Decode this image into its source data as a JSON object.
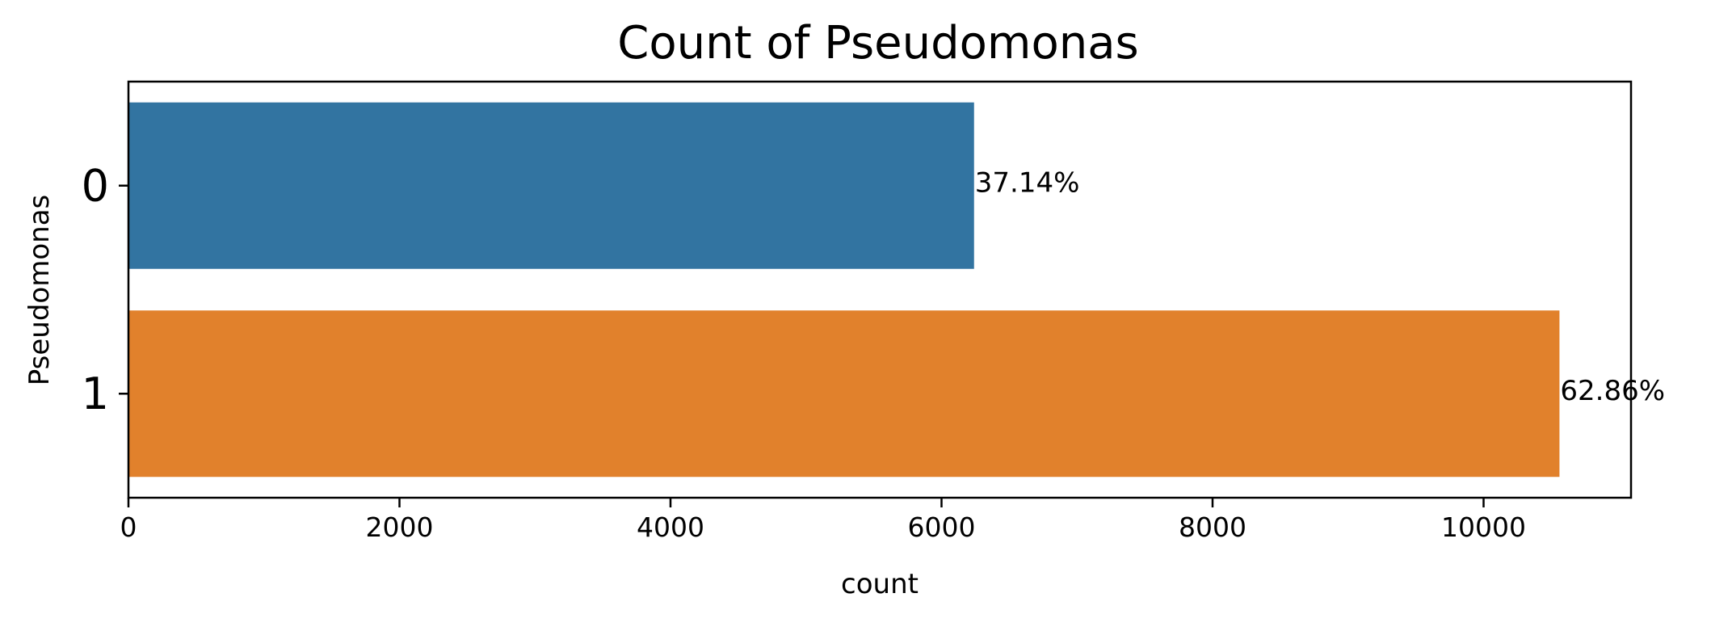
{
  "chart_data": {
    "type": "bar",
    "orientation": "horizontal",
    "title": "Count of Pseudomonas",
    "xlabel": "count",
    "ylabel": "Pseudomonas",
    "categories": [
      "0",
      "1"
    ],
    "values": [
      6240,
      10560
    ],
    "bar_labels": [
      "37.14%",
      "62.86%"
    ],
    "colors": [
      "#3274a1",
      "#e1812c"
    ],
    "xlim": [
      0,
      11088
    ],
    "xticks": [
      0,
      2000,
      4000,
      6000,
      8000,
      10000
    ],
    "xtick_labels": [
      "0",
      "2000",
      "4000",
      "6000",
      "8000",
      "10000"
    ],
    "grid": false,
    "legend": false
  }
}
